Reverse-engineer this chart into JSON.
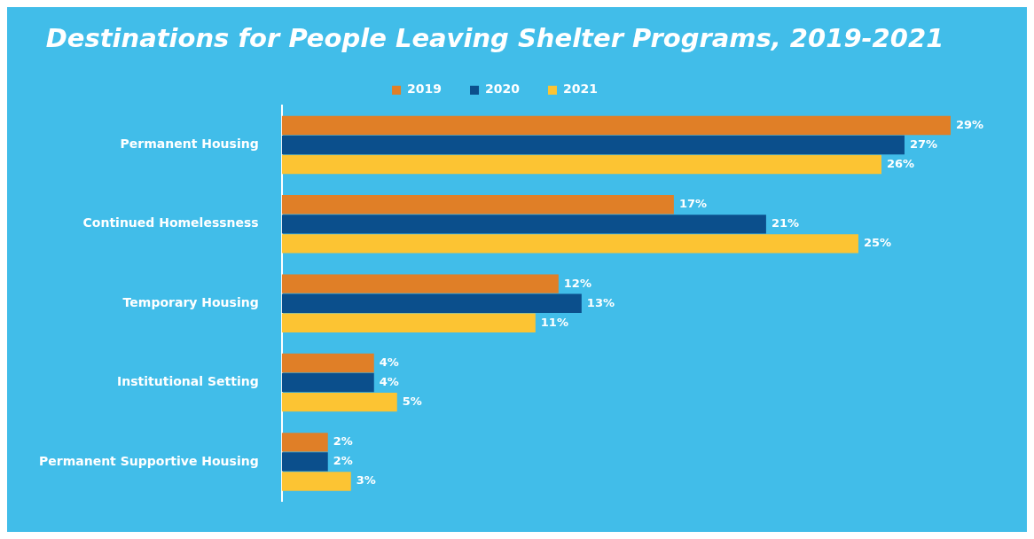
{
  "chart_data": {
    "type": "bar",
    "orientation": "horizontal",
    "title": "Destinations for People Leaving Shelter Programs, 2019-2021",
    "categories": [
      "Permanent Housing",
      "Continued Homelessness",
      "Temporary Housing",
      "Institutional Setting",
      "Permanent Supportive Housing"
    ],
    "series": [
      {
        "name": "2019",
        "color": "#e07f27",
        "values": [
          29,
          17,
          12,
          4,
          2
        ],
        "value_labels": [
          "29%",
          "17%",
          "12%",
          "4%",
          "2%"
        ]
      },
      {
        "name": "2020",
        "color": "#0b4f8c",
        "values": [
          27,
          21,
          13,
          4,
          2
        ],
        "value_labels": [
          "27%",
          "21%",
          "13%",
          "4%",
          "2%"
        ]
      },
      {
        "name": "2021",
        "color": "#fcc433",
        "values": [
          26,
          25,
          11,
          5,
          3
        ],
        "value_labels": [
          "26%",
          "25%",
          "11%",
          "5%",
          "3%"
        ]
      }
    ],
    "legend": "top"
  }
}
